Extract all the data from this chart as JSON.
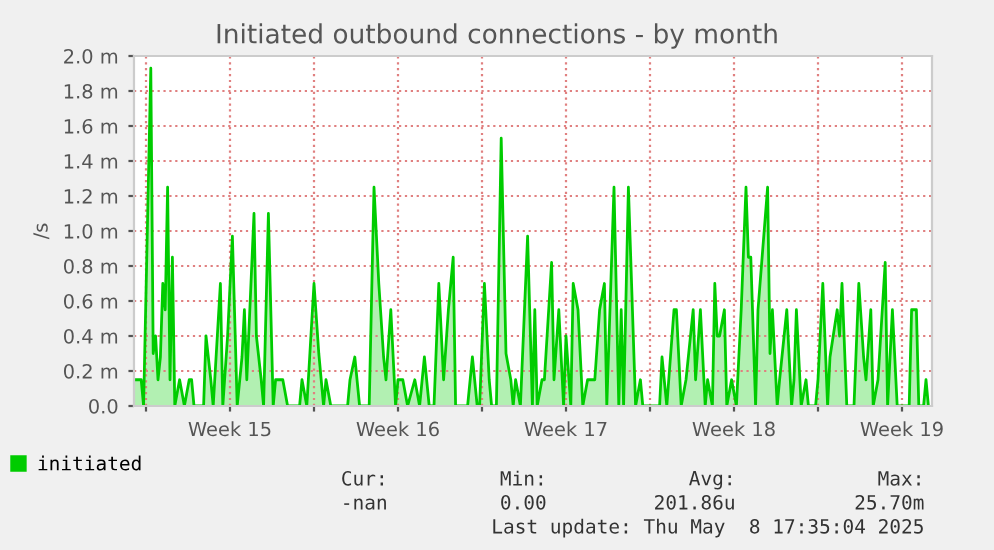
{
  "chart_data": {
    "type": "area",
    "title": "Initiated outbound connections - by month",
    "ylabel": "/s",
    "x": [
      "2025-04-06T12:00",
      "2025-04-06T19:12",
      "2025-04-06T21:36",
      "2025-04-07T04:48",
      "2025-04-07T07:12",
      "2025-04-07T09:36",
      "2025-04-07T12:00",
      "2025-04-07T14:24",
      "2025-04-07T16:48",
      "2025-04-07T19:12",
      "2025-04-07T21:36",
      "2025-04-08T00:00",
      "2025-04-08T02:24",
      "2025-04-08T04:48",
      "2025-04-08T09:36",
      "2025-04-08T14:24",
      "2025-04-08T19:12",
      "2025-04-08T21:36",
      "2025-04-09T00:00",
      "2025-04-09T09:36",
      "2025-04-09T12:00",
      "2025-04-09T16:48",
      "2025-04-09T19:12",
      "2025-04-10T02:24",
      "2025-04-10T04:48",
      "2025-04-10T09:36",
      "2025-04-10T14:24",
      "2025-04-10T19:12",
      "2025-04-11T00:00",
      "2025-04-11T02:24",
      "2025-04-11T04:48",
      "2025-04-11T12:00",
      "2025-04-11T14:24",
      "2025-04-11T19:12",
      "2025-04-11T21:36",
      "2025-04-12T02:24",
      "2025-04-12T07:12",
      "2025-04-12T09:36",
      "2025-04-12T16:48",
      "2025-04-12T21:36",
      "2025-04-13T09:36",
      "2025-04-13T12:00",
      "2025-04-13T16:48",
      "2025-04-14T00:00",
      "2025-04-14T04:48",
      "2025-04-14T09:36",
      "2025-04-14T12:00",
      "2025-04-14T16:48",
      "2025-04-15T09:36",
      "2025-04-15T12:00",
      "2025-04-15T16:48",
      "2025-04-15T21:36",
      "2025-04-16T07:12",
      "2025-04-16T12:00",
      "2025-04-16T16:48",
      "2025-04-16T21:36",
      "2025-04-17T00:00",
      "2025-04-17T04:48",
      "2025-04-17T09:36",
      "2025-04-17T12:00",
      "2025-04-17T16:48",
      "2025-04-17T21:36",
      "2025-04-18T04:48",
      "2025-04-18T09:36",
      "2025-04-18T14:24",
      "2025-04-18T19:12",
      "2025-04-19T00:00",
      "2025-04-19T04:48",
      "2025-04-19T09:36",
      "2025-04-19T14:24",
      "2025-04-19T19:12",
      "2025-04-19T21:36",
      "2025-04-20T09:36",
      "2025-04-20T14:24",
      "2025-04-20T19:12",
      "2025-04-20T21:36",
      "2025-04-21T02:24",
      "2025-04-21T07:12",
      "2025-04-21T09:36",
      "2025-04-21T14:24",
      "2025-04-21T19:12",
      "2025-04-22T00:00",
      "2025-04-22T04:48",
      "2025-04-22T07:12",
      "2025-04-22T09:36",
      "2025-04-22T14:24",
      "2025-04-22T21:36",
      "2025-04-23T02:24",
      "2025-04-23T04:48",
      "2025-04-23T07:12",
      "2025-04-23T12:00",
      "2025-04-23T14:24",
      "2025-04-23T21:36",
      "2025-04-24T00:00",
      "2025-04-24T04:48",
      "2025-04-24T09:36",
      "2025-04-24T12:00",
      "2025-04-24T16:48",
      "2025-04-24T19:12",
      "2025-04-25T00:00",
      "2025-04-25T04:48",
      "2025-04-25T09:36",
      "2025-04-25T16:48",
      "2025-04-25T21:36",
      "2025-04-26T02:24",
      "2025-04-26T04:48",
      "2025-04-26T12:00",
      "2025-04-26T16:48",
      "2025-04-26T19:12",
      "2025-04-26T21:36",
      "2025-04-27T02:24",
      "2025-04-27T09:36",
      "2025-04-27T14:24",
      "2025-04-27T16:48",
      "2025-04-28T09:36",
      "2025-04-28T12:00",
      "2025-04-28T16:48",
      "2025-04-29T00:00",
      "2025-04-29T02:24",
      "2025-04-29T07:12",
      "2025-04-29T12:00",
      "2025-04-29T19:12",
      "2025-04-29T21:36",
      "2025-04-30T02:24",
      "2025-04-30T07:12",
      "2025-04-30T09:36",
      "2025-04-30T14:24",
      "2025-04-30T16:48",
      "2025-04-30T19:12",
      "2025-04-30T21:36",
      "2025-05-01T02:24",
      "2025-05-01T04:48",
      "2025-05-01T09:36",
      "2025-05-01T14:24",
      "2025-05-01T19:12",
      "2025-05-02T00:00",
      "2025-05-02T02:24",
      "2025-05-02T04:48",
      "2025-05-02T09:36",
      "2025-05-02T12:00",
      "2025-05-02T21:36",
      "2025-05-03T00:00",
      "2025-05-03T02:24",
      "2025-05-03T07:12",
      "2025-05-03T09:36",
      "2025-05-03T16:48",
      "2025-05-03T21:36",
      "2025-05-04T00:00",
      "2025-05-04T02:24",
      "2025-05-04T07:12",
      "2025-05-04T12:00",
      "2025-05-04T14:24",
      "2025-05-04T21:36",
      "2025-05-05T00:00",
      "2025-05-05T04:48",
      "2025-05-05T09:36",
      "2025-05-05T12:00",
      "2025-05-05T19:12",
      "2025-05-05T21:36",
      "2025-05-06T00:00",
      "2025-05-06T04:48",
      "2025-05-06T12:00",
      "2025-05-06T16:48",
      "2025-05-06T21:36",
      "2025-05-07T00:00",
      "2025-05-07T04:48",
      "2025-05-07T07:12",
      "2025-05-07T12:00",
      "2025-05-07T19:12",
      "2025-05-07T21:36",
      "2025-05-08T02:24",
      "2025-05-08T07:12",
      "2025-05-08T19:12",
      "2025-05-08T21:36",
      "2025-05-09T02:24",
      "2025-05-09T04:48",
      "2025-05-09T09:36",
      "2025-05-09T12:00",
      "2025-05-09T14:24"
    ],
    "series": [
      {
        "name": "initiated",
        "color": "#00cc00",
        "values": [
          0.15,
          0.15,
          0,
          1.93,
          0.3,
          0.4,
          0.15,
          0.28,
          0.7,
          0.55,
          1.25,
          0.15,
          0.85,
          0,
          0.15,
          0,
          0.15,
          0.15,
          0,
          0,
          0.4,
          0.15,
          0,
          0.7,
          0,
          0.4,
          0.97,
          0,
          0.28,
          0.55,
          0.15,
          1.1,
          0.4,
          0.15,
          0,
          1.1,
          0,
          0.15,
          0.15,
          0,
          0,
          0.15,
          0,
          0.7,
          0.3,
          0,
          0.15,
          0,
          0,
          0.15,
          0.28,
          0,
          0,
          1.25,
          0.7,
          0.28,
          0.15,
          0.55,
          0,
          0.15,
          0.15,
          0,
          0.15,
          0,
          0.28,
          0,
          0,
          0.7,
          0.15,
          0.55,
          0.85,
          0,
          0,
          0.28,
          0,
          0,
          0.7,
          0.15,
          0,
          0,
          1.53,
          0.3,
          0.15,
          0,
          0.15,
          0,
          0.97,
          0,
          0.55,
          0,
          0.15,
          0.15,
          0.82,
          0.15,
          0.55,
          0,
          0.4,
          0,
          0.7,
          0.55,
          0,
          0.15,
          0.15,
          0.55,
          0.7,
          0,
          1.25,
          0,
          0.55,
          0,
          1.25,
          0,
          0.15,
          0,
          0,
          0.28,
          0,
          0.55,
          0.55,
          0,
          0.15,
          0.55,
          0.15,
          0.55,
          0,
          0.15,
          0,
          0.7,
          0.4,
          0.4,
          0.55,
          0,
          0.15,
          0,
          0.55,
          1.25,
          0.85,
          0.85,
          0,
          0.55,
          1.25,
          0.3,
          0.55,
          0,
          0.15,
          0.55,
          0,
          0.15,
          0.55,
          0,
          0.15,
          0,
          0,
          0.15,
          0.7,
          0,
          0.28,
          0.55,
          0.4,
          0.7,
          0,
          0,
          0.7,
          0.28,
          0.15,
          0.55,
          0,
          0.15,
          0.82,
          0,
          0.55,
          0,
          0,
          0.55,
          0.55,
          0,
          0,
          0.15,
          0
        ]
      }
    ],
    "xlim": [
      "2025-04-06T12:00",
      "2025-05-09T18:00"
    ],
    "xticks": [
      {
        "value": "2025-04-07",
        "label": null
      },
      {
        "value": "2025-04-10T12:00",
        "label": "Week 15"
      },
      {
        "value": "2025-04-14",
        "label": null
      },
      {
        "value": "2025-04-17T12:00",
        "label": "Week 16"
      },
      {
        "value": "2025-04-21",
        "label": null
      },
      {
        "value": "2025-04-24T12:00",
        "label": "Week 17"
      },
      {
        "value": "2025-04-28",
        "label": null
      },
      {
        "value": "2025-05-01T12:00",
        "label": "Week 18"
      },
      {
        "value": "2025-05-05",
        "label": null
      },
      {
        "value": "2025-05-08T12:00",
        "label": "Week 19"
      }
    ],
    "ylim": [
      0,
      2.0
    ],
    "yticks": [
      {
        "value": 0,
        "label": "0.0"
      },
      {
        "value": 0.2,
        "label": "0.2 m"
      },
      {
        "value": 0.4,
        "label": "0.4 m"
      },
      {
        "value": 0.6,
        "label": "0.6 m"
      },
      {
        "value": 0.8,
        "label": "0.8 m"
      },
      {
        "value": 1.0,
        "label": "1.0 m"
      },
      {
        "value": 1.2,
        "label": "1.2 m"
      },
      {
        "value": 1.4,
        "label": "1.4 m"
      },
      {
        "value": 1.6,
        "label": "1.6 m"
      },
      {
        "value": 1.8,
        "label": "1.8 m"
      },
      {
        "value": 2.0,
        "label": "2.0 m"
      }
    ],
    "grid": true,
    "legend": "bottom",
    "annotations": [
      "Cur:",
      "Min:",
      "Avg:",
      "Max:",
      "-nan",
      "0.00",
      "201.86u",
      "25.70m",
      "Last update: Thu May  8 17:35:04 2025"
    ]
  }
}
